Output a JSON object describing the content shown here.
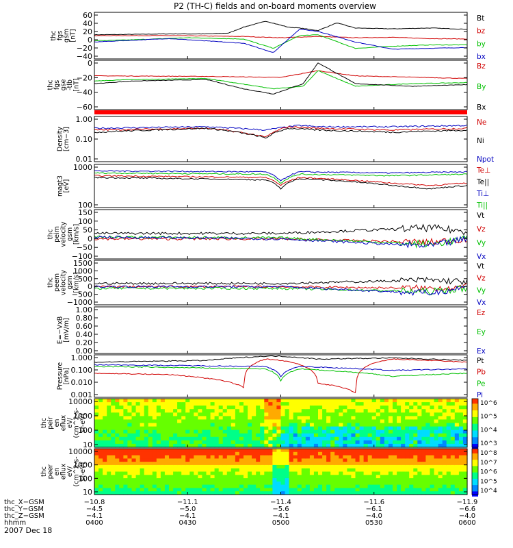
{
  "title": "P2 (TH-C) fields and on-board moments overview",
  "chart_data": [
    {
      "type": "line",
      "panel": "fgs-gsm",
      "ylabel": [
        "thc",
        "fgs",
        "gsm",
        "[nT]"
      ],
      "yticks": [
        "60",
        "40",
        "20",
        "0",
        "−20",
        "−40"
      ],
      "ylim": [
        -45,
        65
      ],
      "legend": [
        {
          "name": "Bt",
          "color": "#000000"
        },
        {
          "name": "bz",
          "color": "#d00000"
        },
        {
          "name": "by",
          "color": "#00c000"
        },
        {
          "name": "bx",
          "color": "#0000c0"
        }
      ],
      "series": [
        {
          "name": "Bt",
          "color": "#000000",
          "x": [
            0,
            0.1,
            0.2,
            0.3,
            0.36,
            0.4,
            0.46,
            0.52,
            0.55,
            0.6,
            0.65,
            0.7,
            0.8,
            0.9,
            1
          ],
          "y": [
            12,
            13,
            14,
            14,
            16,
            30,
            44,
            30,
            28,
            22,
            40,
            28,
            26,
            28,
            25
          ]
        },
        {
          "name": "bz",
          "color": "#d00000",
          "x": [
            0,
            0.2,
            0.4,
            0.5,
            0.6,
            0.7,
            0.8,
            0.9,
            1
          ],
          "y": [
            10,
            10,
            8,
            5,
            8,
            5,
            6,
            3,
            2
          ]
        },
        {
          "name": "by",
          "color": "#00c000",
          "x": [
            0,
            0.1,
            0.25,
            0.4,
            0.48,
            0.55,
            0.6,
            0.7,
            0.8,
            0.9,
            1
          ],
          "y": [
            -2,
            0,
            5,
            2,
            -20,
            10,
            12,
            -20,
            -15,
            -12,
            -12
          ]
        },
        {
          "name": "bx",
          "color": "#0000c0",
          "x": [
            0,
            0.2,
            0.4,
            0.48,
            0.55,
            0.6,
            0.7,
            0.8,
            0.9,
            1
          ],
          "y": [
            -5,
            3,
            -8,
            -30,
            25,
            20,
            -5,
            -22,
            -20,
            -18
          ]
        }
      ]
    },
    {
      "type": "line",
      "panel": "fgs-gse",
      "ylabel": [
        "thc",
        "fgs",
        "gse",
        "-tlb",
        "[nT]"
      ],
      "yticks": [
        "0",
        "−20",
        "−40",
        "−60"
      ],
      "ylim": [
        -70,
        25
      ],
      "legend": [
        {
          "name": "Bz",
          "color": "#d00000"
        },
        {
          "name": "By",
          "color": "#00c000"
        },
        {
          "name": "Bx",
          "color": "#000000"
        }
      ],
      "series": [
        {
          "name": "Bz",
          "color": "#d00000",
          "x": [
            0,
            0.3,
            0.5,
            0.6,
            0.7,
            1
          ],
          "y": [
            -5,
            -6,
            -8,
            5,
            -5,
            -10
          ]
        },
        {
          "name": "By",
          "color": "#00c000",
          "x": [
            0,
            0.1,
            0.3,
            0.48,
            0.56,
            0.6,
            0.7,
            0.85,
            1
          ],
          "y": [
            -15,
            -12,
            -10,
            -30,
            -25,
            5,
            -25,
            -20,
            -18
          ]
        },
        {
          "name": "Bx",
          "color": "#000000",
          "x": [
            0,
            0.1,
            0.3,
            0.4,
            0.48,
            0.56,
            0.6,
            0.7,
            0.85,
            1
          ],
          "y": [
            -20,
            -15,
            -12,
            -30,
            -40,
            -20,
            20,
            -20,
            -25,
            -22
          ]
        }
      ]
    },
    {
      "type": "line",
      "panel": "density",
      "ylabel": [
        "Density",
        "[cm−3]"
      ],
      "yticks": [
        "1.00",
        "0.10",
        "0.01"
      ],
      "ylim": [
        0.01,
        1.0
      ],
      "log": true,
      "legend": [
        {
          "name": "Ne",
          "color": "#d00000"
        },
        {
          "name": "Ni",
          "color": "#000000"
        },
        {
          "name": "Npot",
          "color": "#0000c0"
        }
      ],
      "series": [
        {
          "name": "Npot",
          "color": "#0000c0",
          "x": [
            0,
            0.3,
            0.46,
            0.55,
            0.6,
            0.8,
            1
          ],
          "y": [
            0.3,
            0.35,
            0.25,
            0.4,
            0.35,
            0.35,
            0.4
          ]
        },
        {
          "name": "Ne",
          "color": "#d00000",
          "x": [
            0,
            0.3,
            0.46,
            0.52,
            0.6,
            0.8,
            1
          ],
          "y": [
            0.25,
            0.3,
            0.12,
            0.35,
            0.3,
            0.25,
            0.3
          ]
        },
        {
          "name": "Ni",
          "color": "#000000",
          "x": [
            0,
            0.3,
            0.46,
            0.52,
            0.6,
            0.8,
            1
          ],
          "y": [
            0.2,
            0.3,
            0.11,
            0.3,
            0.25,
            0.2,
            0.25
          ]
        }
      ]
    },
    {
      "type": "line",
      "panel": "temperature",
      "ylabel": [
        "magt3",
        "[eV]"
      ],
      "yticks": [
        "1000",
        "100"
      ],
      "ylim": [
        100,
        20000
      ],
      "log": true,
      "legend": [
        {
          "name": "Te⊥",
          "color": "#d00000"
        },
        {
          "name": "Te||",
          "color": "#000000"
        },
        {
          "name": "Ti⊥",
          "color": "#0000c0"
        },
        {
          "name": "Ti||",
          "color": "#00c000"
        }
      ],
      "series": [
        {
          "name": "Ti⊥",
          "color": "#0000c0",
          "x": [
            0,
            0.46,
            0.5,
            0.55,
            0.8,
            1
          ],
          "y": [
            9000,
            8000,
            2500,
            8000,
            7000,
            8000
          ]
        },
        {
          "name": "Ti||",
          "color": "#00c000",
          "x": [
            0,
            0.46,
            0.5,
            0.55,
            0.8,
            1
          ],
          "y": [
            7000,
            6000,
            2000,
            6000,
            5000,
            6000
          ]
        },
        {
          "name": "Te⊥",
          "color": "#d00000",
          "x": [
            0,
            0.46,
            0.5,
            0.55,
            0.8,
            0.9,
            1
          ],
          "y": [
            5000,
            4000,
            1500,
            4000,
            2000,
            1500,
            2000
          ]
        },
        {
          "name": "Te||",
          "color": "#000000",
          "x": [
            0,
            0.46,
            0.5,
            0.55,
            0.8,
            0.9,
            1
          ],
          "y": [
            4000,
            3000,
            1000,
            3500,
            1500,
            1000,
            1500
          ]
        }
      ]
    },
    {
      "type": "line",
      "panel": "ion-velocity",
      "ylabel": [
        "thc",
        "peim",
        "velocity",
        "gsm",
        "[km/s]"
      ],
      "yticks": [
        "150",
        "100",
        "50",
        "0",
        "−50",
        "−100"
      ],
      "ylim": [
        -110,
        160
      ],
      "legend": [
        {
          "name": "Vt",
          "color": "#000000"
        },
        {
          "name": "Vz",
          "color": "#d00000"
        },
        {
          "name": "Vy",
          "color": "#00c000"
        },
        {
          "name": "Vx",
          "color": "#0000c0"
        }
      ],
      "series": [
        {
          "name": "Vt",
          "color": "#000000",
          "x": [
            0,
            0.5,
            0.9,
            1
          ],
          "y": [
            30,
            30,
            60,
            40
          ]
        },
        {
          "name": "Vz",
          "color": "#d00000",
          "x": [
            0,
            0.5,
            0.9,
            1
          ],
          "y": [
            0,
            0,
            -20,
            0
          ]
        },
        {
          "name": "Vy",
          "color": "#00c000",
          "x": [
            0,
            0.5,
            0.9,
            1
          ],
          "y": [
            10,
            5,
            -30,
            0
          ]
        },
        {
          "name": "Vx",
          "color": "#0000c0",
          "x": [
            0,
            0.5,
            0.9,
            1
          ],
          "y": [
            10,
            0,
            -40,
            0
          ]
        }
      ]
    },
    {
      "type": "line",
      "panel": "electron-velocity",
      "ylabel": [
        "thc",
        "peem",
        "velocity",
        "gsm",
        "[km/s]"
      ],
      "yticks": [
        "1500",
        "1000",
        "500",
        "0",
        "−500",
        "−1000"
      ],
      "ylim": [
        -1100,
        1600
      ],
      "legend": [
        {
          "name": "Vt",
          "color": "#000000"
        },
        {
          "name": "Vz",
          "color": "#d00000"
        },
        {
          "name": "Vy",
          "color": "#00c000"
        },
        {
          "name": "Vx",
          "color": "#0000c0"
        }
      ],
      "series": [
        {
          "name": "Vt",
          "color": "#000000",
          "x": [
            0,
            0.5,
            0.9,
            1
          ],
          "y": [
            200,
            200,
            400,
            300
          ]
        },
        {
          "name": "Vz",
          "color": "#d00000",
          "x": [
            0,
            0.5,
            0.9,
            1
          ],
          "y": [
            0,
            0,
            -100,
            0
          ]
        },
        {
          "name": "Vy",
          "color": "#00c000",
          "x": [
            0,
            0.5,
            0.9,
            1
          ],
          "y": [
            -100,
            -100,
            -300,
            -100
          ]
        },
        {
          "name": "Vx",
          "color": "#0000c0",
          "x": [
            0,
            0.5,
            0.9,
            1
          ],
          "y": [
            0,
            0,
            -400,
            0
          ]
        }
      ]
    },
    {
      "type": "line",
      "panel": "efield",
      "ylabel": [
        "E=−VxB",
        "[mV/m]"
      ],
      "yticks": [
        "1.00",
        "0.80",
        "0.60",
        "0.40",
        "0.20",
        "0.00"
      ],
      "ylim": [
        0,
        1
      ],
      "legend": [
        {
          "name": "Ez",
          "color": "#d00000"
        },
        {
          "name": "Ey",
          "color": "#00c000"
        },
        {
          "name": "Ex",
          "color": "#0000c0"
        }
      ],
      "series": []
    },
    {
      "type": "line",
      "panel": "pressure",
      "ylabel": [
        "Pressure",
        "[nPa]"
      ],
      "yticks": [
        "1.000",
        "0.100",
        "0.010",
        "0.001"
      ],
      "ylim": [
        0.001,
        1.0
      ],
      "log": true,
      "legend": [
        {
          "name": "Pt",
          "color": "#000000"
        },
        {
          "name": "Pb",
          "color": "#d00000"
        },
        {
          "name": "Pe",
          "color": "#00c000"
        },
        {
          "name": "Pi",
          "color": "#0000c0"
        }
      ],
      "series": [
        {
          "name": "Pt",
          "color": "#000000",
          "x": [
            0,
            0.3,
            0.46,
            0.5,
            0.6,
            0.8,
            1
          ],
          "y": [
            0.3,
            0.4,
            0.8,
            0.8,
            0.5,
            0.6,
            0.4
          ]
        },
        {
          "name": "Pb",
          "color": "#d00000",
          "x": [
            0,
            0.2,
            0.4,
            0.46,
            0.5,
            0.6,
            0.7,
            0.8,
            1
          ],
          "y": [
            0.05,
            0.04,
            0.005,
            0.5,
            0.4,
            0.01,
            0.002,
            0.5,
            0.3
          ]
        },
        {
          "name": "Pe",
          "color": "#00c000",
          "x": [
            0,
            0.46,
            0.5,
            0.55,
            0.8,
            1
          ],
          "y": [
            0.15,
            0.1,
            0.015,
            0.1,
            0.03,
            0.05
          ]
        },
        {
          "name": "Pi",
          "color": "#0000c0",
          "x": [
            0,
            0.46,
            0.5,
            0.55,
            0.8,
            1
          ],
          "y": [
            0.2,
            0.15,
            0.03,
            0.15,
            0.08,
            0.1
          ]
        }
      ]
    },
    {
      "type": "heatmap",
      "panel": "ion-eflux",
      "ylabel": [
        "thc",
        "peir",
        "en",
        "eflux",
        "eV/",
        "(cm^2-s-",
        "sr-eV)"
      ],
      "yticks": [
        "10000",
        "1000",
        "100",
        "10"
      ],
      "ylim": [
        5,
        30000
      ],
      "log": true,
      "colorbar_ticks": [
        "10^6",
        "10^5",
        "10^4",
        "10^3"
      ]
    },
    {
      "type": "heatmap",
      "panel": "electron-eflux",
      "ylabel": [
        "thc",
        "peer",
        "en",
        "eflux",
        "eV/",
        "(cm^2-s-",
        "sr-eV)"
      ],
      "yticks": [
        "10000",
        "1000",
        "100",
        "10"
      ],
      "ylim": [
        5,
        30000
      ],
      "log": true,
      "colorbar_ticks": [
        "10^8",
        "10^7",
        "10^6",
        "10^5",
        "10^4"
      ]
    }
  ],
  "xaxis_rows": [
    {
      "label": "thc_X−GSM",
      "values": [
        "−10.8",
        "−11.1",
        "−11.4",
        "−11.6",
        "−11.9"
      ]
    },
    {
      "label": "thc_Y−GSM",
      "values": [
        "−4.5",
        "−5.0",
        "−5.6",
        "−6.1",
        "−6.6"
      ]
    },
    {
      "label": "thc_Z−GSM",
      "values": [
        "−4.1",
        "−4.1",
        "−4.1",
        "−4.0",
        "−4.0"
      ]
    },
    {
      "label": "hhmm",
      "values": [
        "0400",
        "0430",
        "0500",
        "0530",
        "0600"
      ]
    }
  ],
  "date_label": "2007 Dec 18"
}
